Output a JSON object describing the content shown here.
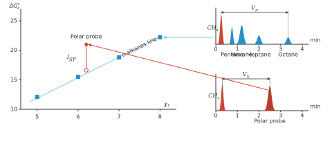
{
  "chart_data": [
    {
      "type": "scatter",
      "xlim": [
        4.6,
        8.4
      ],
      "ylim": [
        10,
        27
      ],
      "xticks": [
        5,
        6,
        7,
        8
      ],
      "yticks": [
        10,
        15,
        20,
        25
      ],
      "x_label": {
        "text": "χ",
        "sub": "T"
      },
      "y_label": {
        "text": "ΔG",
        "sub": "a",
        "sup": "s"
      },
      "series": [
        {
          "name": "n-alkanes line",
          "color": "#2a8fc6",
          "x": [
            5,
            6,
            7,
            8
          ],
          "values": [
            12.1,
            15.5,
            18.8,
            22.2
          ]
        }
      ],
      "trend": {
        "x": [
          4.8,
          8
        ],
        "values": [
          11.2,
          22.3
        ]
      },
      "probe": {
        "name": "Polar probe",
        "color": "#d9432e",
        "x": 6.2,
        "values": [
          16.6,
          21.0
        ]
      },
      "interval_label": {
        "text": "I",
        "sub": "SP"
      }
    },
    {
      "type": "chromatogram",
      "xlim": [
        0,
        4.3
      ],
      "ylim": [
        0,
        1
      ],
      "xticks": [
        0,
        1,
        2,
        3,
        4
      ],
      "x_label": "min",
      "vn_label": {
        "text": "V",
        "sub": "N"
      },
      "vn": [
        0.25,
        3.35
      ],
      "methane": {
        "label": {
          "text": "CH",
          "sub": "4"
        },
        "color": "#d9432e",
        "x": 0.25,
        "value": 0.95
      },
      "peaks": {
        "names": [
          "Pentane",
          "Hexane",
          "Heptane",
          "Octane"
        ],
        "color": "#2a8fc6",
        "x": [
          0.75,
          1.2,
          2.0,
          3.35
        ],
        "values": [
          0.55,
          0.62,
          0.28,
          0.22
        ]
      }
    },
    {
      "type": "chromatogram",
      "xlim": [
        0,
        4.3
      ],
      "ylim": [
        0,
        1
      ],
      "xticks": [
        0,
        1,
        2,
        3,
        4
      ],
      "x_label": "min",
      "vn_label": {
        "text": "V",
        "sub": "N"
      },
      "vn": [
        0.3,
        2.5
      ],
      "methane": {
        "label": {
          "text": "CH",
          "sub": "4"
        },
        "color": "#d9432e",
        "x": 0.3,
        "value": 0.85
      },
      "peaks": {
        "names": [
          "Polar probe"
        ],
        "color": "#c0392b",
        "x": [
          2.5
        ],
        "values": [
          0.8
        ]
      }
    }
  ]
}
